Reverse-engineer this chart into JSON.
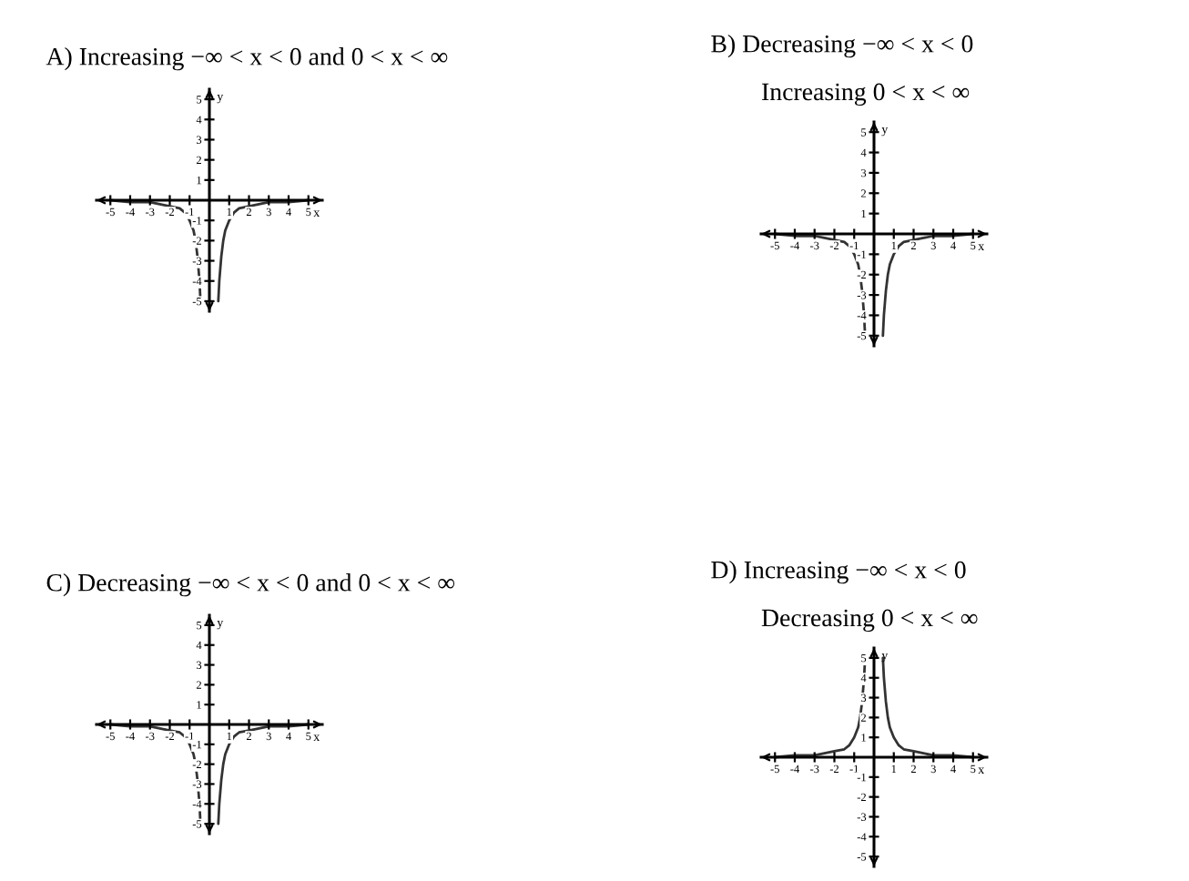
{
  "chart_data": [
    {
      "type": "line",
      "title": "A) Increasing −∞ < x < 0 and 0 < x < ∞",
      "xlabel": "x",
      "ylabel": "y",
      "xlim": [
        -5.7,
        5.7
      ],
      "ylim": [
        -5.5,
        5.5
      ],
      "xticks": [
        -5,
        -4,
        -3,
        -2,
        -1,
        1,
        2,
        3,
        4,
        5
      ],
      "yticks": [
        -5,
        -4,
        -3,
        -2,
        -1,
        1,
        2,
        3,
        4,
        5
      ],
      "series": [
        {
          "color": "#333333",
          "x": [
            -5,
            -4,
            -3,
            -2.5,
            -2,
            -1.5,
            -1.25,
            -1,
            -0.8,
            -0.7,
            -0.6,
            -0.5,
            -0.45,
            0,
            0.45,
            0.5,
            0.6,
            0.7,
            0.8,
            1,
            1.25,
            1.5,
            2,
            2.5,
            3,
            4,
            5
          ],
          "values": [
            0,
            -0.1,
            -0.1,
            -0.2,
            -0.3,
            -0.4,
            -0.6,
            -1,
            -1.5,
            -2,
            -2.8,
            -4,
            -5,
            null,
            -5,
            -4,
            -2.8,
            -2,
            -1.5,
            -1,
            -0.6,
            -0.4,
            -0.3,
            -0.2,
            -0.1,
            -0.1,
            0
          ]
        }
      ]
    },
    {
      "type": "line",
      "title": "B) Decreasing −∞ < x < 0",
      "subtitle": "Increasing 0 < x < ∞",
      "xlabel": "x",
      "ylabel": "y",
      "xlim": [
        -5.7,
        5.7
      ],
      "ylim": [
        -5.5,
        5.5
      ],
      "xticks": [
        -5,
        -4,
        -3,
        -2,
        -1,
        1,
        2,
        3,
        4,
        5
      ],
      "yticks": [
        -5,
        -4,
        -3,
        -2,
        -1,
        1,
        2,
        3,
        4,
        5
      ],
      "series": [
        {
          "color": "#333333",
          "x": [
            -5,
            -4,
            -3,
            -2.5,
            -2,
            -1.5,
            -1.25,
            -1,
            -0.8,
            -0.7,
            -0.6,
            -0.5,
            -0.45,
            0,
            0.45,
            0.5,
            0.6,
            0.7,
            0.8,
            1,
            1.25,
            1.5,
            2,
            2.5,
            3,
            4,
            5
          ],
          "values": [
            0,
            -0.1,
            -0.1,
            -0.2,
            -0.3,
            -0.4,
            -0.6,
            -1,
            -1.5,
            -2,
            -2.8,
            -4,
            -5,
            null,
            -5,
            -4,
            -2.8,
            -2,
            -1.5,
            -1,
            -0.6,
            -0.4,
            -0.3,
            -0.2,
            -0.1,
            -0.1,
            0
          ]
        }
      ]
    },
    {
      "type": "line",
      "title": "C) Decreasing −∞ < x < 0 and 0 < x < ∞",
      "xlabel": "x",
      "ylabel": "y",
      "xlim": [
        -5.7,
        5.7
      ],
      "ylim": [
        -5.5,
        5.5
      ],
      "xticks": [
        -5,
        -4,
        -3,
        -2,
        -1,
        1,
        2,
        3,
        4,
        5
      ],
      "yticks": [
        -5,
        -4,
        -3,
        -2,
        -1,
        1,
        2,
        3,
        4,
        5
      ],
      "series": [
        {
          "color": "#333333",
          "x": [
            -5,
            -4,
            -3,
            -2.5,
            -2,
            -1.5,
            -1.25,
            -1,
            -0.8,
            -0.7,
            -0.6,
            -0.5,
            -0.45,
            0,
            0.45,
            0.5,
            0.6,
            0.7,
            0.8,
            1,
            1.25,
            1.5,
            2,
            2.5,
            3,
            4,
            5
          ],
          "values": [
            0,
            -0.1,
            -0.1,
            -0.2,
            -0.3,
            -0.4,
            -0.6,
            -1,
            -1.5,
            -2,
            -2.8,
            -4,
            -5,
            null,
            -5,
            -4,
            -2.8,
            -2,
            -1.5,
            -1,
            -0.6,
            -0.4,
            -0.3,
            -0.2,
            -0.1,
            -0.1,
            0
          ]
        }
      ]
    },
    {
      "type": "line",
      "title": "D) Increasing −∞ < x < 0",
      "subtitle": "Decreasing 0 < x < ∞",
      "xlabel": "x",
      "ylabel": "y",
      "xlim": [
        -5.7,
        5.7
      ],
      "ylim": [
        -5.5,
        5.5
      ],
      "xticks": [
        -5,
        -4,
        -3,
        -2,
        -1,
        1,
        2,
        3,
        4,
        5
      ],
      "yticks": [
        -5,
        -4,
        -3,
        -2,
        -1,
        1,
        2,
        3,
        4,
        5
      ],
      "series": [
        {
          "color": "#333333",
          "x": [
            -5,
            -4,
            -3,
            -2.5,
            -2,
            -1.5,
            -1.25,
            -1,
            -0.8,
            -0.7,
            -0.6,
            -0.5,
            -0.45,
            0,
            0.45,
            0.5,
            0.6,
            0.7,
            0.8,
            1,
            1.25,
            1.5,
            2,
            2.5,
            3,
            4,
            5
          ],
          "values": [
            0,
            0.1,
            0.1,
            0.2,
            0.3,
            0.4,
            0.6,
            1,
            1.5,
            2,
            2.8,
            4,
            5,
            null,
            5,
            4,
            2.8,
            2,
            1.5,
            1,
            0.6,
            0.4,
            0.3,
            0.2,
            0.1,
            0.1,
            0
          ]
        }
      ]
    }
  ]
}
